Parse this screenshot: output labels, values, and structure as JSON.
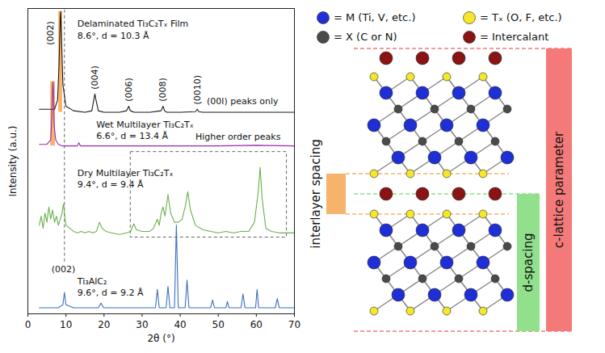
{
  "chart_data": {
    "type": "line",
    "x_label": "2θ (°)",
    "y_label": "Intensity (a.u.)",
    "xlim": [
      0,
      70
    ],
    "xticks": [
      0,
      10,
      20,
      30,
      40,
      50,
      60,
      70
    ],
    "ylim": [
      0,
      100
    ],
    "yticks": [],
    "tick_labels": "x",
    "series": [
      {
        "name": "Delaminated Ti₃C₂Tₓ Film",
        "color": "#1a1a1a",
        "x": [
          3,
          5,
          7,
          7.8,
          8.2,
          8.5,
          8.6,
          8.8,
          9.2,
          10,
          12,
          15,
          16.8,
          17.3,
          17.6,
          17.9,
          18.5,
          20,
          24,
          25.9,
          26.5,
          26.9,
          28,
          32,
          35,
          35.5,
          35.9,
          36.5,
          40,
          44,
          44.5,
          44.9,
          46,
          55,
          65,
          70
        ],
        "values": [
          67,
          67,
          67,
          70,
          82,
          97,
          99,
          92,
          75,
          68,
          66.5,
          66,
          66.5,
          70,
          72,
          70,
          66.5,
          66,
          66,
          66.5,
          68,
          66.5,
          66,
          66,
          66.5,
          68,
          66.5,
          66,
          66,
          66.2,
          67,
          66.2,
          66,
          66,
          66,
          66
        ],
        "name_at": [
          13,
          95
        ],
        "note": "8.6°, d = 10.3 Å",
        "note_at": [
          13,
          91
        ]
      },
      {
        "name": "Wet Multilayer Ti₃C₂Tₓ",
        "color": "#9b27b0",
        "x": [
          3,
          5,
          6,
          6.3,
          6.5,
          6.6,
          6.7,
          6.9,
          7.3,
          8,
          9,
          12,
          13,
          13.4,
          13.8,
          20,
          30,
          40,
          50,
          60,
          70
        ],
        "values": [
          55.5,
          55.5,
          57,
          65,
          74,
          76,
          73,
          62,
          57,
          55.5,
          55,
          55,
          55,
          56,
          55,
          55,
          55,
          55,
          55,
          55.2,
          55
        ],
        "name_at": [
          18,
          62
        ],
        "note": "6.6°, d = 13.4 Å",
        "note_at": [
          18,
          58.3
        ]
      },
      {
        "name": "Dry Multilayer Ti₃C₂Tₓ",
        "color": "#6ab04c",
        "x": [
          3,
          3.5,
          4,
          4.5,
          5,
          5.5,
          6,
          6.5,
          7,
          7.5,
          8,
          8.5,
          9,
          9.2,
          9.4,
          9.6,
          10,
          11,
          12,
          13,
          14,
          15,
          16,
          17,
          18,
          18.8,
          19.5,
          20.5,
          22,
          24,
          26,
          27,
          27.8,
          28.5,
          30,
          32,
          33,
          34,
          34.5,
          35,
          35.5,
          36,
          36.8,
          37.5,
          38.5,
          39.5,
          40.5,
          41.3,
          42,
          42.7,
          44,
          46,
          48,
          50,
          52,
          54,
          56,
          58,
          59.5,
          60.5,
          61,
          61.5,
          62.5,
          64,
          66,
          68,
          70
        ],
        "values": [
          29,
          32,
          28,
          33,
          30,
          35,
          31,
          34,
          30,
          32,
          29,
          31,
          33,
          35,
          36,
          33,
          29,
          28,
          27,
          26.5,
          27,
          26.5,
          27,
          26.5,
          27,
          30,
          28,
          27,
          26.5,
          26,
          26.5,
          27,
          29.5,
          27.5,
          27,
          27,
          28,
          31,
          29,
          33,
          35,
          32,
          39,
          33,
          30,
          30,
          31,
          35,
          40,
          34,
          29,
          27.5,
          27,
          26.5,
          27,
          26.5,
          27,
          27,
          30,
          40,
          48,
          38,
          28,
          27,
          26.5,
          26.5,
          26.5
        ],
        "name_at": [
          13,
          46
        ],
        "note": "9.4°, d = 9.4 Å",
        "note_at": [
          13,
          42.3
        ]
      },
      {
        "name": "Ti₃AlC₂",
        "color": "#3a6fc4",
        "x": [
          3,
          8,
          9.2,
          9.6,
          10,
          12,
          18.5,
          19.2,
          19.9,
          25,
          33.5,
          34,
          34.5,
          36.3,
          36.8,
          37.3,
          38.5,
          39,
          39.5,
          41.3,
          41.8,
          42.3,
          48,
          48.5,
          49,
          52,
          52.4,
          52.8,
          56,
          56.5,
          57,
          59.8,
          60.2,
          60.6,
          65,
          65.5,
          66,
          70
        ],
        "values": [
          2,
          2,
          3,
          7,
          3,
          2,
          2,
          3.5,
          2,
          2,
          2,
          8,
          2,
          2,
          9,
          2,
          2,
          29,
          2,
          2,
          11,
          2,
          2,
          4.5,
          2,
          2,
          4,
          2,
          2,
          6.5,
          2,
          2,
          8,
          2,
          2,
          5,
          2,
          2
        ],
        "name_at": [
          13,
          10.7
        ],
        "note": "9.6°, d = 9.2 Å",
        "note_at": [
          13,
          7
        ]
      }
    ],
    "peak_labels": [
      {
        "text": "(002)",
        "x": 6,
        "y": 88
      },
      {
        "text": "(004)",
        "x": 17.6,
        "y": 73.5
      },
      {
        "text": "(006)",
        "x": 26.6,
        "y": 69.5
      },
      {
        "text": "(008)",
        "x": 35.5,
        "y": 69.5
      },
      {
        "text": "(0010)",
        "x": 44.5,
        "y": 68.5
      }
    ],
    "annotations": [
      {
        "text": "(00l) peaks only",
        "x": 47,
        "y": 69.5
      },
      {
        "text": "(002)",
        "x": 6.2,
        "y": 14.5
      }
    ],
    "highlights": [
      {
        "x": [
          8.1,
          9.1
        ],
        "y": [
          66,
          99
        ],
        "color": "#f7b26b"
      },
      {
        "x": [
          6.0,
          7.2
        ],
        "y": [
          55,
          76
        ],
        "color": "#f7b26b"
      }
    ],
    "reference_line": {
      "x": 9.6,
      "y": [
        17,
        100
      ],
      "line_style": "dashed"
    },
    "box": {
      "x": [
        27,
        68
      ],
      "y": [
        25,
        53
      ],
      "line_style": "dashed",
      "text": "Higher order peaks",
      "text_at": [
        44,
        58
      ]
    }
  },
  "diagram": {
    "legend": [
      {
        "label": "= M (Ti, V, etc.)",
        "color": "#1f2fd6"
      },
      {
        "label": "= Tₓ (O, F, etc.)",
        "color": "#f5e72a"
      },
      {
        "label": "= X (C or N)",
        "color": "#4a4a4a"
      },
      {
        "label": "= Intercalant",
        "color": "#8a1414"
      }
    ],
    "dimensions": [
      {
        "label": "interlayer spacing",
        "color": "#f7b26b"
      },
      {
        "label": "d-spacing",
        "color": "#90e08c"
      },
      {
        "label": "c-lattice parameter",
        "color": "#f47a7a"
      }
    ]
  }
}
